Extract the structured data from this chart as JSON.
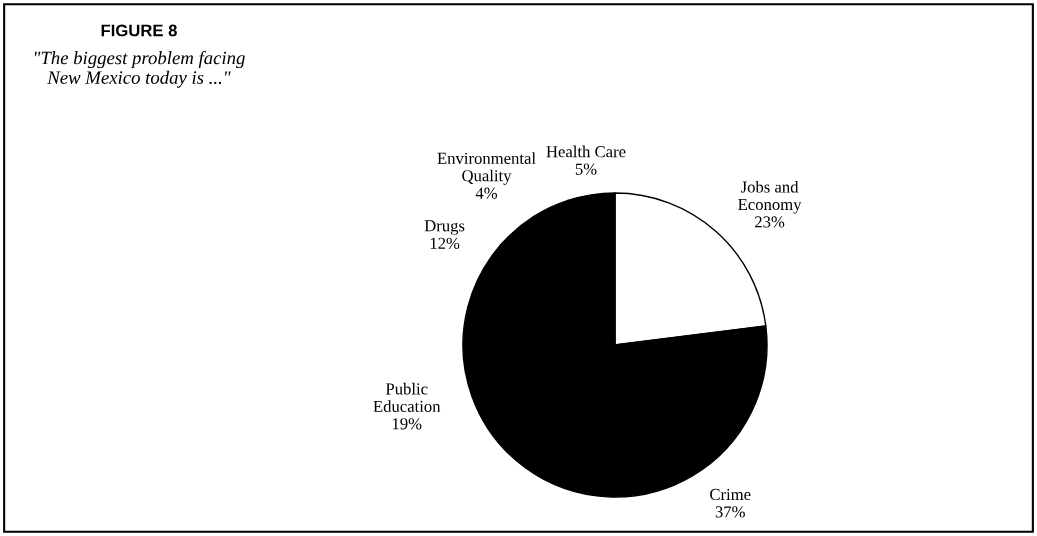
{
  "chart_data": {
    "type": "pie",
    "title": "FIGURE 8",
    "subtitle": "\"The biggest problem facing\nNew Mexico today is ...\"",
    "categories": [
      "Jobs and\nEconomy",
      "Crime",
      "Public\nEducation",
      "Drugs",
      "Environmental\nQuality",
      "Health Care"
    ],
    "values": [
      23,
      37,
      19,
      12,
      4,
      5
    ],
    "value_labels": [
      "23%",
      "37%",
      "19%",
      "12%",
      "4%",
      "5%"
    ],
    "colors": [
      "#ffffff",
      "#000000",
      "#000000",
      "#000000",
      "#000000",
      "#000000"
    ]
  }
}
